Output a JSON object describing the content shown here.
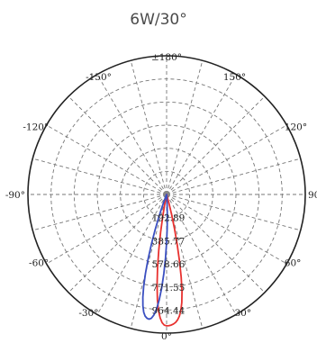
{
  "chart_data": {
    "type": "polar",
    "title": "6W/30°",
    "angle_labels": [
      {
        "angle": 180,
        "text": "±180°"
      },
      {
        "angle": 150,
        "text": "150°"
      },
      {
        "angle": -150,
        "text": "-150°"
      },
      {
        "angle": 120,
        "text": "120°"
      },
      {
        "angle": -120,
        "text": "-120°"
      },
      {
        "angle": 90,
        "text": "90°"
      },
      {
        "angle": -90,
        "text": "-90°"
      },
      {
        "angle": 60,
        "text": "60°"
      },
      {
        "angle": -60,
        "text": "-60°"
      },
      {
        "angle": 30,
        "text": "30°"
      },
      {
        "angle": -30,
        "text": "-30°"
      },
      {
        "angle": 0,
        "text": "0°"
      }
    ],
    "radial_max": 1156,
    "radial_labels": [
      {
        "value": 192.89,
        "text": "192.89"
      },
      {
        "value": 385.77,
        "text": "385.77"
      },
      {
        "value": 578.66,
        "text": "578.66"
      },
      {
        "value": 771.55,
        "text": "771.55"
      },
      {
        "value": 964.44,
        "text": "964.44"
      }
    ],
    "ring_count": 6,
    "spoke_step_deg": 15,
    "series": [
      {
        "color": "#e8312f",
        "points": [
          [
            -12,
            0
          ],
          [
            -11,
            70
          ],
          [
            -10,
            180
          ],
          [
            -9,
            320
          ],
          [
            -8,
            470
          ],
          [
            -7,
            620
          ],
          [
            -6,
            760
          ],
          [
            -5,
            880
          ],
          [
            -4,
            970
          ],
          [
            -3,
            1030
          ],
          [
            -2,
            1070
          ],
          [
            -1,
            1090
          ],
          [
            0,
            1095
          ],
          [
            1,
            1094
          ],
          [
            2,
            1090
          ],
          [
            3,
            1082
          ],
          [
            4,
            1070
          ],
          [
            5,
            1050
          ],
          [
            6,
            1020
          ],
          [
            7,
            975
          ],
          [
            8,
            910
          ],
          [
            9,
            820
          ],
          [
            10,
            700
          ],
          [
            11,
            560
          ],
          [
            12,
            420
          ],
          [
            13,
            290
          ],
          [
            14,
            170
          ],
          [
            15,
            80
          ],
          [
            16,
            20
          ],
          [
            17,
            0
          ]
        ]
      },
      {
        "color": "#3a4fc1",
        "points": [
          [
            -22,
            0
          ],
          [
            -21,
            40
          ],
          [
            -20,
            110
          ],
          [
            -19,
            200
          ],
          [
            -18,
            310
          ],
          [
            -17,
            430
          ],
          [
            -16,
            560
          ],
          [
            -15,
            680
          ],
          [
            -14,
            790
          ],
          [
            -13,
            880
          ],
          [
            -12,
            950
          ],
          [
            -11,
            1000
          ],
          [
            -10,
            1030
          ],
          [
            -9,
            1045
          ],
          [
            -8,
            1050
          ],
          [
            -7,
            1040
          ],
          [
            -6,
            1010
          ],
          [
            -5,
            960
          ],
          [
            -4,
            880
          ],
          [
            -3,
            780
          ],
          [
            -2,
            660
          ],
          [
            -1,
            530
          ],
          [
            0,
            400
          ],
          [
            1,
            280
          ],
          [
            2,
            170
          ],
          [
            3,
            80
          ],
          [
            4,
            20
          ],
          [
            5,
            0
          ]
        ]
      }
    ]
  }
}
